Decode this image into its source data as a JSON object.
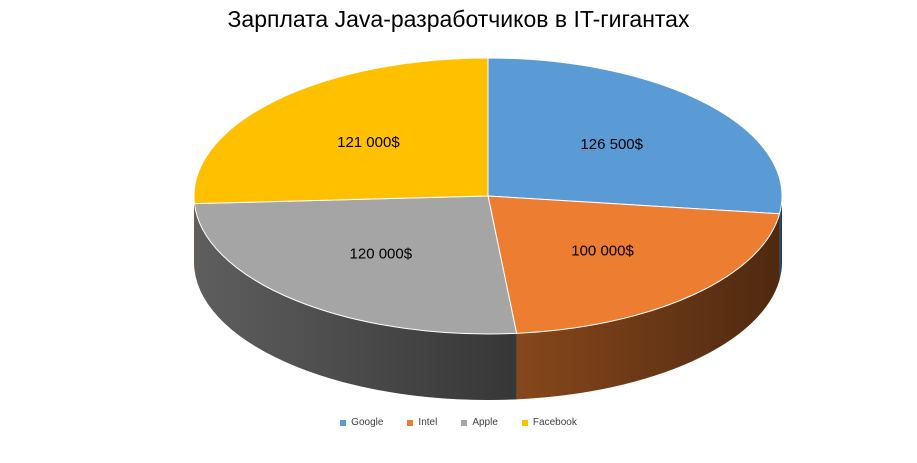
{
  "chart_data": {
    "type": "pie",
    "title": "Зарплата Java-разработчиков в IT-гигантах",
    "categories": [
      "Google",
      "Intel",
      "Apple",
      "Facebook"
    ],
    "values": [
      126500,
      100000,
      120000,
      121000
    ],
    "data_labels": [
      "126 500$",
      "100 000$",
      "120 000$",
      "121 000$"
    ],
    "colors": [
      "#5B9BD5",
      "#ED7D31",
      "#A5A5A5",
      "#FFC000"
    ],
    "legend_position": "bottom",
    "style": "3d"
  }
}
